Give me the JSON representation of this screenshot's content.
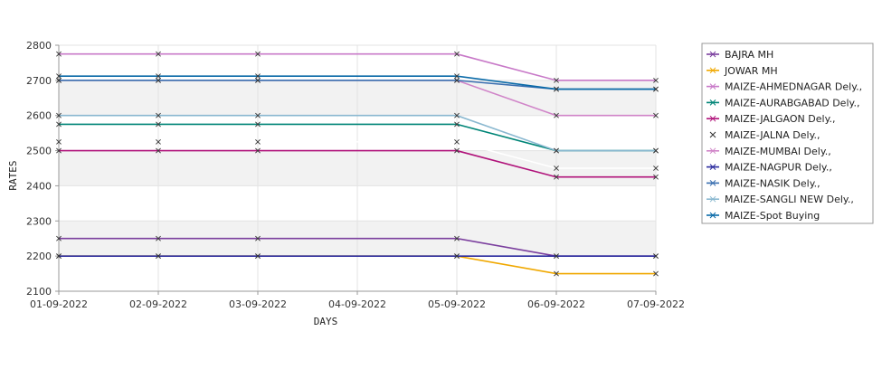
{
  "chart_data": {
    "type": "line",
    "xlabel": "DAYS",
    "ylabel": "RATES",
    "ylim": [
      2100,
      2800
    ],
    "yticks": [
      2100,
      2200,
      2300,
      2400,
      2500,
      2600,
      2700,
      2800
    ],
    "categories": [
      "01-09-2022",
      "02-09-2022",
      "03-09-2022",
      "04-09-2022",
      "05-09-2022",
      "06-09-2022",
      "07-09-2022"
    ],
    "grid": true,
    "legend_position": "right",
    "series": [
      {
        "name": "BAJRA MH",
        "color": "#7b3f9e",
        "values": [
          2250,
          2250,
          2250,
          null,
          2250,
          2200,
          2200
        ]
      },
      {
        "name": "JOWAR MH",
        "color": "#f0a800",
        "values": [
          2200,
          2200,
          2200,
          null,
          2200,
          2150,
          2150
        ]
      },
      {
        "name": "MAIZE-AHMEDNAGAR Dely.,",
        "color": "#c879c8",
        "values": [
          2775,
          2775,
          2775,
          null,
          2775,
          2700,
          2700
        ]
      },
      {
        "name": "MAIZE-AURABGABAD Dely.,",
        "color": "#008577",
        "values": [
          2575,
          2575,
          2575,
          null,
          2575,
          2500,
          2500
        ]
      },
      {
        "name": "MAIZE-JALGAON Dely.,",
        "color": "#b0127a",
        "values": [
          2500,
          2500,
          2500,
          null,
          2500,
          2425,
          2425
        ]
      },
      {
        "name": "MAIZE-JALNA Dely.,",
        "color": "#ffffff",
        "values": [
          2525,
          2525,
          2525,
          null,
          2525,
          2450,
          2450
        ]
      },
      {
        "name": "MAIZE-MUMBAI Dely.,",
        "color": "#d084c8",
        "values": [
          2700,
          2700,
          2700,
          null,
          2700,
          2600,
          2600
        ]
      },
      {
        "name": "MAIZE-NAGPUR Dely.,",
        "color": "#2b2b9e",
        "values": [
          2200,
          2200,
          2200,
          null,
          2200,
          2200,
          2200
        ]
      },
      {
        "name": "MAIZE-NASIK Dely.,",
        "color": "#3a6fb0",
        "values": [
          2700,
          2700,
          2700,
          null,
          2700,
          2675,
          2675
        ]
      },
      {
        "name": "MAIZE-SANGLI NEW Dely.,",
        "color": "#8ab8d0",
        "values": [
          2600,
          2600,
          2600,
          null,
          2600,
          2500,
          2500
        ]
      },
      {
        "name": "MAIZE-Spot Buying",
        "color": "#0a6aa8",
        "values": [
          2712,
          2712,
          2712,
          null,
          2712,
          2675,
          2675
        ]
      }
    ]
  }
}
